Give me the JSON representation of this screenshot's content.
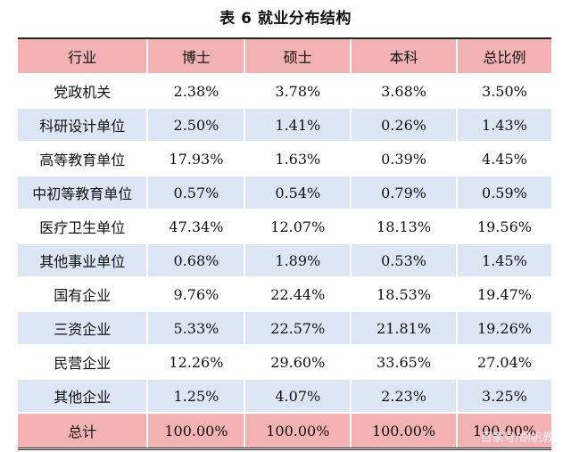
{
  "title": "表 6  就业分布结构",
  "table": {
    "headers": [
      "行业",
      "博士",
      "硕士",
      "本科",
      "总比例"
    ],
    "rows": [
      [
        "党政机关",
        "2.38%",
        "3.78%",
        "3.68%",
        "3.50%"
      ],
      [
        "科研设计单位",
        "2.50%",
        "1.41%",
        "0.26%",
        "1.43%"
      ],
      [
        "高等教育单位",
        "17.93%",
        "1.63%",
        "0.39%",
        "4.45%"
      ],
      [
        "中初等教育单位",
        "0.57%",
        "0.54%",
        "0.79%",
        "0.59%"
      ],
      [
        "医疗卫生单位",
        "47.34%",
        "12.07%",
        "18.13%",
        "19.56%"
      ],
      [
        "其他事业单位",
        "0.68%",
        "1.89%",
        "0.53%",
        "1.45%"
      ],
      [
        "国有企业",
        "9.76%",
        "22.44%",
        "18.53%",
        "19.47%"
      ],
      [
        "三资企业",
        "5.33%",
        "22.57%",
        "21.81%",
        "19.26%"
      ],
      [
        "民营企业",
        "12.26%",
        "29.60%",
        "33.65%",
        "27.04%"
      ],
      [
        "其他企业",
        "1.25%",
        "4.07%",
        "2.23%",
        "3.25%"
      ]
    ],
    "total": [
      "总计",
      "100.00%",
      "100.00%",
      "100.00%",
      "100.00%"
    ]
  },
  "watermark": "百家号/胡帆教育",
  "colors": {
    "header_bg": "#f3b3b5",
    "stripe_bg": "#dde6f4",
    "total_bg": "#f3b3b5"
  }
}
